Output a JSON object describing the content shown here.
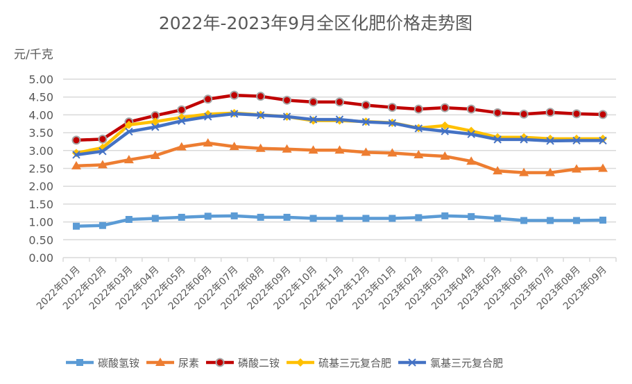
{
  "chart_data": {
    "type": "line",
    "title": "2022年-2023年9月全区化肥价格走势图",
    "ylabel": "元/千克",
    "xlabel": "",
    "ylim": [
      0,
      5
    ],
    "ytick_labels": [
      "0.00",
      "0.50",
      "1.00",
      "1.50",
      "2.00",
      "2.50",
      "3.00",
      "3.50",
      "4.00",
      "4.50",
      "5.00"
    ],
    "grid": true,
    "legend_position": "bottom",
    "categories": [
      "2022年01月",
      "2022年02月",
      "2022年03月",
      "2022年04月",
      "2022年05月",
      "2022年06月",
      "2022年07月",
      "2022年08月",
      "2022年09月",
      "2022年10月",
      "2022年11月",
      "2022年12月",
      "2023年01月",
      "2023年02月",
      "2023年03月",
      "2023年04月",
      "2023年05月",
      "2023年06月",
      "2023年07月",
      "2023年08月",
      "2023年09月"
    ],
    "series": [
      {
        "name": "碳酸氢铵",
        "color": "#5b9bd5",
        "marker": "square",
        "values": [
          0.88,
          0.9,
          1.07,
          1.1,
          1.13,
          1.16,
          1.17,
          1.13,
          1.13,
          1.1,
          1.1,
          1.1,
          1.1,
          1.12,
          1.17,
          1.15,
          1.1,
          1.04,
          1.04,
          1.04,
          1.05
        ]
      },
      {
        "name": "尿素",
        "color": "#ed7d31",
        "marker": "triangle",
        "values": [
          2.57,
          2.6,
          2.74,
          2.86,
          3.1,
          3.21,
          3.11,
          3.06,
          3.04,
          3.01,
          3.01,
          2.95,
          2.93,
          2.88,
          2.84,
          2.7,
          2.43,
          2.38,
          2.38,
          2.48,
          2.5
        ]
      },
      {
        "name": "磷酸二铵",
        "color": "#c00000",
        "marker": "circle",
        "values": [
          3.29,
          3.32,
          3.8,
          3.98,
          4.14,
          4.44,
          4.55,
          4.52,
          4.41,
          4.36,
          4.36,
          4.27,
          4.21,
          4.16,
          4.2,
          4.16,
          4.06,
          4.02,
          4.07,
          4.03,
          4.01
        ]
      },
      {
        "name": "硫基三元复合肥",
        "color": "#ffc000",
        "marker": "diamond",
        "values": [
          2.93,
          3.08,
          3.72,
          3.81,
          3.93,
          4.02,
          4.05,
          4.0,
          3.95,
          3.84,
          3.84,
          3.81,
          3.78,
          3.63,
          3.7,
          3.55,
          3.37,
          3.37,
          3.33,
          3.33,
          3.33
        ]
      },
      {
        "name": "氯基三元复合肥",
        "color": "#4472c4",
        "marker": "x",
        "values": [
          2.88,
          2.98,
          3.53,
          3.66,
          3.83,
          3.95,
          4.03,
          3.99,
          3.95,
          3.87,
          3.87,
          3.8,
          3.77,
          3.62,
          3.54,
          3.46,
          3.31,
          3.31,
          3.27,
          3.28,
          3.28
        ]
      }
    ]
  }
}
